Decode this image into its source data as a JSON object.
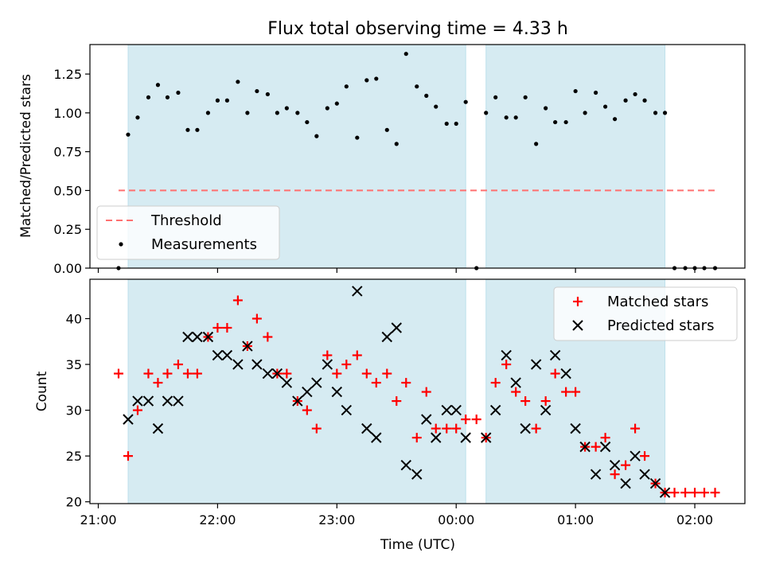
{
  "chart_data": [
    {
      "panel": "top",
      "type": "scatter",
      "title": "Flux total observing time = 4.33 h",
      "xlabel": "",
      "ylabel": "Matched/Predicted stars",
      "x_unit": "hours after 21:00 UTC",
      "xlim": [
        -0.07,
        5.42
      ],
      "ylim": [
        0.0,
        1.44
      ],
      "yticks": [
        0.0,
        0.25,
        0.5,
        0.75,
        1.0,
        1.25
      ],
      "ytick_labels": [
        "0.00",
        "0.25",
        "0.50",
        "0.75",
        "1.00",
        "1.25"
      ],
      "observing_windows": [
        [
          0.25,
          3.08
        ],
        [
          3.25,
          4.75
        ]
      ],
      "threshold": {
        "name": "Threshold",
        "value": 0.5,
        "x_range": [
          0.17,
          5.17
        ],
        "color": "#ff7070",
        "style": "dashed"
      },
      "legend": {
        "position": "lower-left",
        "entries": [
          "Threshold",
          "Measurements"
        ]
      },
      "series": [
        {
          "name": "Measurements",
          "marker": "dot",
          "color": "#000000",
          "points": [
            [
              0.17,
              0.0
            ],
            [
              0.25,
              0.86
            ],
            [
              0.33,
              0.97
            ],
            [
              0.42,
              1.1
            ],
            [
              0.5,
              1.18
            ],
            [
              0.58,
              1.1
            ],
            [
              0.67,
              1.13
            ],
            [
              0.75,
              0.89
            ],
            [
              0.83,
              0.89
            ],
            [
              0.92,
              1.0
            ],
            [
              1.0,
              1.08
            ],
            [
              1.08,
              1.08
            ],
            [
              1.17,
              1.2
            ],
            [
              1.25,
              1.0
            ],
            [
              1.33,
              1.14
            ],
            [
              1.42,
              1.12
            ],
            [
              1.5,
              1.0
            ],
            [
              1.58,
              1.03
            ],
            [
              1.67,
              1.0
            ],
            [
              1.75,
              0.94
            ],
            [
              1.83,
              0.85
            ],
            [
              1.92,
              1.03
            ],
            [
              2.0,
              1.06
            ],
            [
              2.08,
              1.17
            ],
            [
              2.17,
              0.84
            ],
            [
              2.25,
              1.21
            ],
            [
              2.33,
              1.22
            ],
            [
              2.42,
              0.89
            ],
            [
              2.5,
              0.8
            ],
            [
              2.58,
              1.38
            ],
            [
              2.67,
              1.17
            ],
            [
              2.75,
              1.11
            ],
            [
              2.83,
              1.04
            ],
            [
              2.92,
              0.93
            ],
            [
              3.0,
              0.93
            ],
            [
              3.08,
              1.07
            ],
            [
              3.17,
              0.0
            ],
            [
              3.25,
              1.0
            ],
            [
              3.33,
              1.1
            ],
            [
              3.42,
              0.97
            ],
            [
              3.5,
              0.97
            ],
            [
              3.58,
              1.1
            ],
            [
              3.67,
              0.8
            ],
            [
              3.75,
              1.03
            ],
            [
              3.83,
              0.94
            ],
            [
              3.92,
              0.94
            ],
            [
              4.0,
              1.14
            ],
            [
              4.08,
              1.0
            ],
            [
              4.17,
              1.13
            ],
            [
              4.25,
              1.04
            ],
            [
              4.33,
              0.96
            ],
            [
              4.42,
              1.08
            ],
            [
              4.5,
              1.12
            ],
            [
              4.58,
              1.08
            ],
            [
              4.67,
              1.0
            ],
            [
              4.75,
              1.0
            ],
            [
              4.83,
              0.0
            ],
            [
              4.92,
              0.0
            ],
            [
              5.0,
              0.0
            ],
            [
              5.08,
              0.0
            ],
            [
              5.17,
              0.0
            ]
          ]
        }
      ]
    },
    {
      "panel": "bottom",
      "type": "scatter",
      "title": "",
      "xlabel": "Time (UTC)",
      "ylabel": "Count",
      "x_unit": "hours after 21:00 UTC",
      "xlim": [
        -0.07,
        5.42
      ],
      "ylim": [
        19.8,
        44.3
      ],
      "yticks": [
        20,
        25,
        30,
        35,
        40
      ],
      "ytick_labels": [
        "20",
        "25",
        "30",
        "35",
        "40"
      ],
      "xticks": [
        0,
        1,
        2,
        3,
        4,
        5
      ],
      "xtick_labels": [
        "21:00",
        "22:00",
        "23:00",
        "00:00",
        "01:00",
        "02:00"
      ],
      "observing_windows": [
        [
          0.25,
          3.08
        ],
        [
          3.25,
          4.75
        ]
      ],
      "legend": {
        "position": "top-right",
        "entries": [
          "Matched stars",
          "Predicted stars"
        ]
      },
      "series": [
        {
          "name": "Matched stars",
          "marker": "plus",
          "color": "#ff0000",
          "points": [
            [
              0.17,
              34
            ],
            [
              0.25,
              25
            ],
            [
              0.33,
              30
            ],
            [
              0.42,
              34
            ],
            [
              0.5,
              33
            ],
            [
              0.58,
              34
            ],
            [
              0.67,
              35
            ],
            [
              0.75,
              34
            ],
            [
              0.83,
              34
            ],
            [
              0.92,
              38
            ],
            [
              1.0,
              39
            ],
            [
              1.08,
              39
            ],
            [
              1.17,
              42
            ],
            [
              1.25,
              37
            ],
            [
              1.33,
              40
            ],
            [
              1.42,
              38
            ],
            [
              1.5,
              34
            ],
            [
              1.58,
              34
            ],
            [
              1.67,
              31
            ],
            [
              1.75,
              30
            ],
            [
              1.83,
              28
            ],
            [
              1.92,
              36
            ],
            [
              2.0,
              34
            ],
            [
              2.08,
              35
            ],
            [
              2.17,
              36
            ],
            [
              2.25,
              34
            ],
            [
              2.33,
              33
            ],
            [
              2.42,
              34
            ],
            [
              2.5,
              31
            ],
            [
              2.58,
              33
            ],
            [
              2.67,
              27
            ],
            [
              2.75,
              32
            ],
            [
              2.83,
              28
            ],
            [
              2.92,
              28
            ],
            [
              3.0,
              28
            ],
            [
              3.08,
              29
            ],
            [
              3.17,
              29
            ],
            [
              3.25,
              27
            ],
            [
              3.33,
              33
            ],
            [
              3.42,
              35
            ],
            [
              3.5,
              32
            ],
            [
              3.58,
              31
            ],
            [
              3.67,
              28
            ],
            [
              3.75,
              31
            ],
            [
              3.83,
              34
            ],
            [
              3.92,
              32
            ],
            [
              4.0,
              32
            ],
            [
              4.08,
              26
            ],
            [
              4.17,
              26
            ],
            [
              4.25,
              27
            ],
            [
              4.33,
              23
            ],
            [
              4.42,
              24
            ],
            [
              4.5,
              28
            ],
            [
              4.58,
              25
            ],
            [
              4.67,
              22
            ],
            [
              4.75,
              21
            ],
            [
              4.83,
              21
            ],
            [
              4.92,
              21
            ],
            [
              5.0,
              21
            ],
            [
              5.08,
              21
            ],
            [
              5.17,
              21
            ]
          ]
        },
        {
          "name": "Predicted stars",
          "marker": "x",
          "color": "#000000",
          "points": [
            [
              0.25,
              29
            ],
            [
              0.33,
              31
            ],
            [
              0.42,
              31
            ],
            [
              0.5,
              28
            ],
            [
              0.58,
              31
            ],
            [
              0.67,
              31
            ],
            [
              0.75,
              38
            ],
            [
              0.83,
              38
            ],
            [
              0.92,
              38
            ],
            [
              1.0,
              36
            ],
            [
              1.08,
              36
            ],
            [
              1.17,
              35
            ],
            [
              1.25,
              37
            ],
            [
              1.33,
              35
            ],
            [
              1.42,
              34
            ],
            [
              1.5,
              34
            ],
            [
              1.58,
              33
            ],
            [
              1.67,
              31
            ],
            [
              1.75,
              32
            ],
            [
              1.83,
              33
            ],
            [
              1.92,
              35
            ],
            [
              2.0,
              32
            ],
            [
              2.08,
              30
            ],
            [
              2.17,
              43
            ],
            [
              2.25,
              28
            ],
            [
              2.33,
              27
            ],
            [
              2.42,
              38
            ],
            [
              2.5,
              39
            ],
            [
              2.58,
              24
            ],
            [
              2.67,
              23
            ],
            [
              2.75,
              29
            ],
            [
              2.83,
              27
            ],
            [
              2.92,
              30
            ],
            [
              3.0,
              30
            ],
            [
              3.08,
              27
            ],
            [
              3.25,
              27
            ],
            [
              3.33,
              30
            ],
            [
              3.42,
              36
            ],
            [
              3.5,
              33
            ],
            [
              3.58,
              28
            ],
            [
              3.67,
              35
            ],
            [
              3.75,
              30
            ],
            [
              3.83,
              36
            ],
            [
              3.92,
              34
            ],
            [
              4.0,
              28
            ],
            [
              4.08,
              26
            ],
            [
              4.17,
              23
            ],
            [
              4.25,
              26
            ],
            [
              4.33,
              24
            ],
            [
              4.42,
              22
            ],
            [
              4.5,
              25
            ],
            [
              4.58,
              23
            ],
            [
              4.67,
              22
            ],
            [
              4.75,
              21
            ]
          ]
        }
      ]
    }
  ],
  "colors": {
    "observing_window_fill": "#add8e6",
    "threshold": "#ff7070",
    "matched": "#ff0000",
    "predicted": "#000000",
    "measurements": "#000000"
  }
}
